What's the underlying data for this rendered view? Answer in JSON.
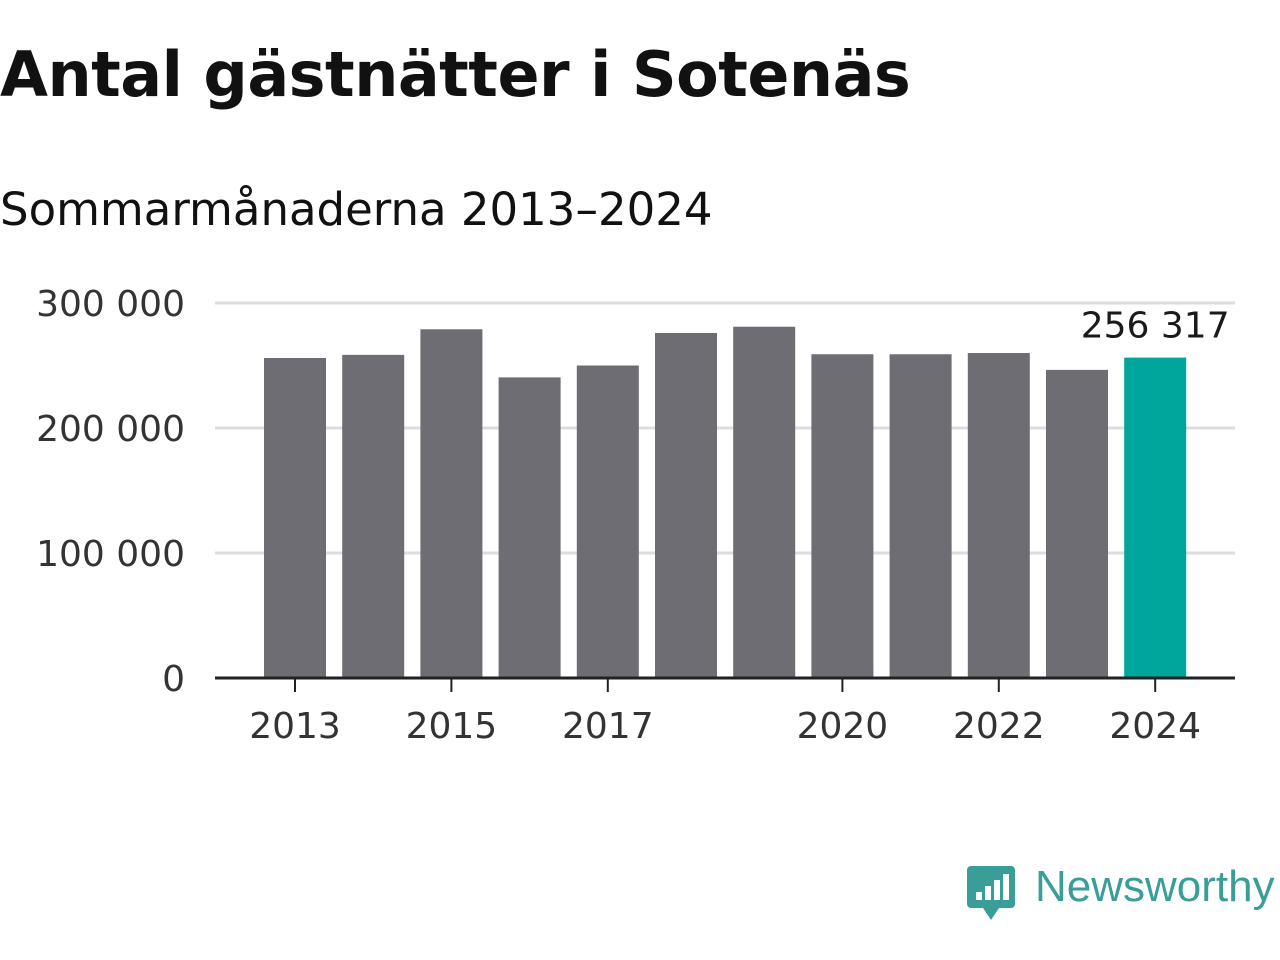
{
  "title": "Antal gästnätter i Sotenäs",
  "subtitle": "Sommarmånaderna 2013–2024",
  "brand": {
    "name": "Newsworthy",
    "logo_icon": "newsworthy-bar-chart-icon",
    "color": "#3a9e98"
  },
  "colors": {
    "bar": "#6e6d74",
    "highlight": "#00a69c",
    "grid": "#dddddd",
    "axis": "#222222",
    "text": "#333333"
  },
  "chart_data": {
    "type": "bar",
    "categories": [
      "2013",
      "2014",
      "2015",
      "2016",
      "2017",
      "2018",
      "2019",
      "2020",
      "2021",
      "2022",
      "2023",
      "2024"
    ],
    "values": [
      256000,
      258500,
      279000,
      240500,
      250000,
      276000,
      281000,
      259000,
      259000,
      260000,
      246500,
      256317
    ],
    "highlight_index": 11,
    "highlight_label": "256 317",
    "x_tick_labels": [
      "2013",
      "2015",
      "2017",
      "2020",
      "2022",
      "2024"
    ],
    "y_ticks": [
      0,
      100000,
      200000,
      300000
    ],
    "y_tick_labels": [
      "0",
      "100 000",
      "200 000",
      "300 000"
    ],
    "ylim": [
      0,
      300000
    ],
    "grid": true,
    "legend": "none"
  }
}
